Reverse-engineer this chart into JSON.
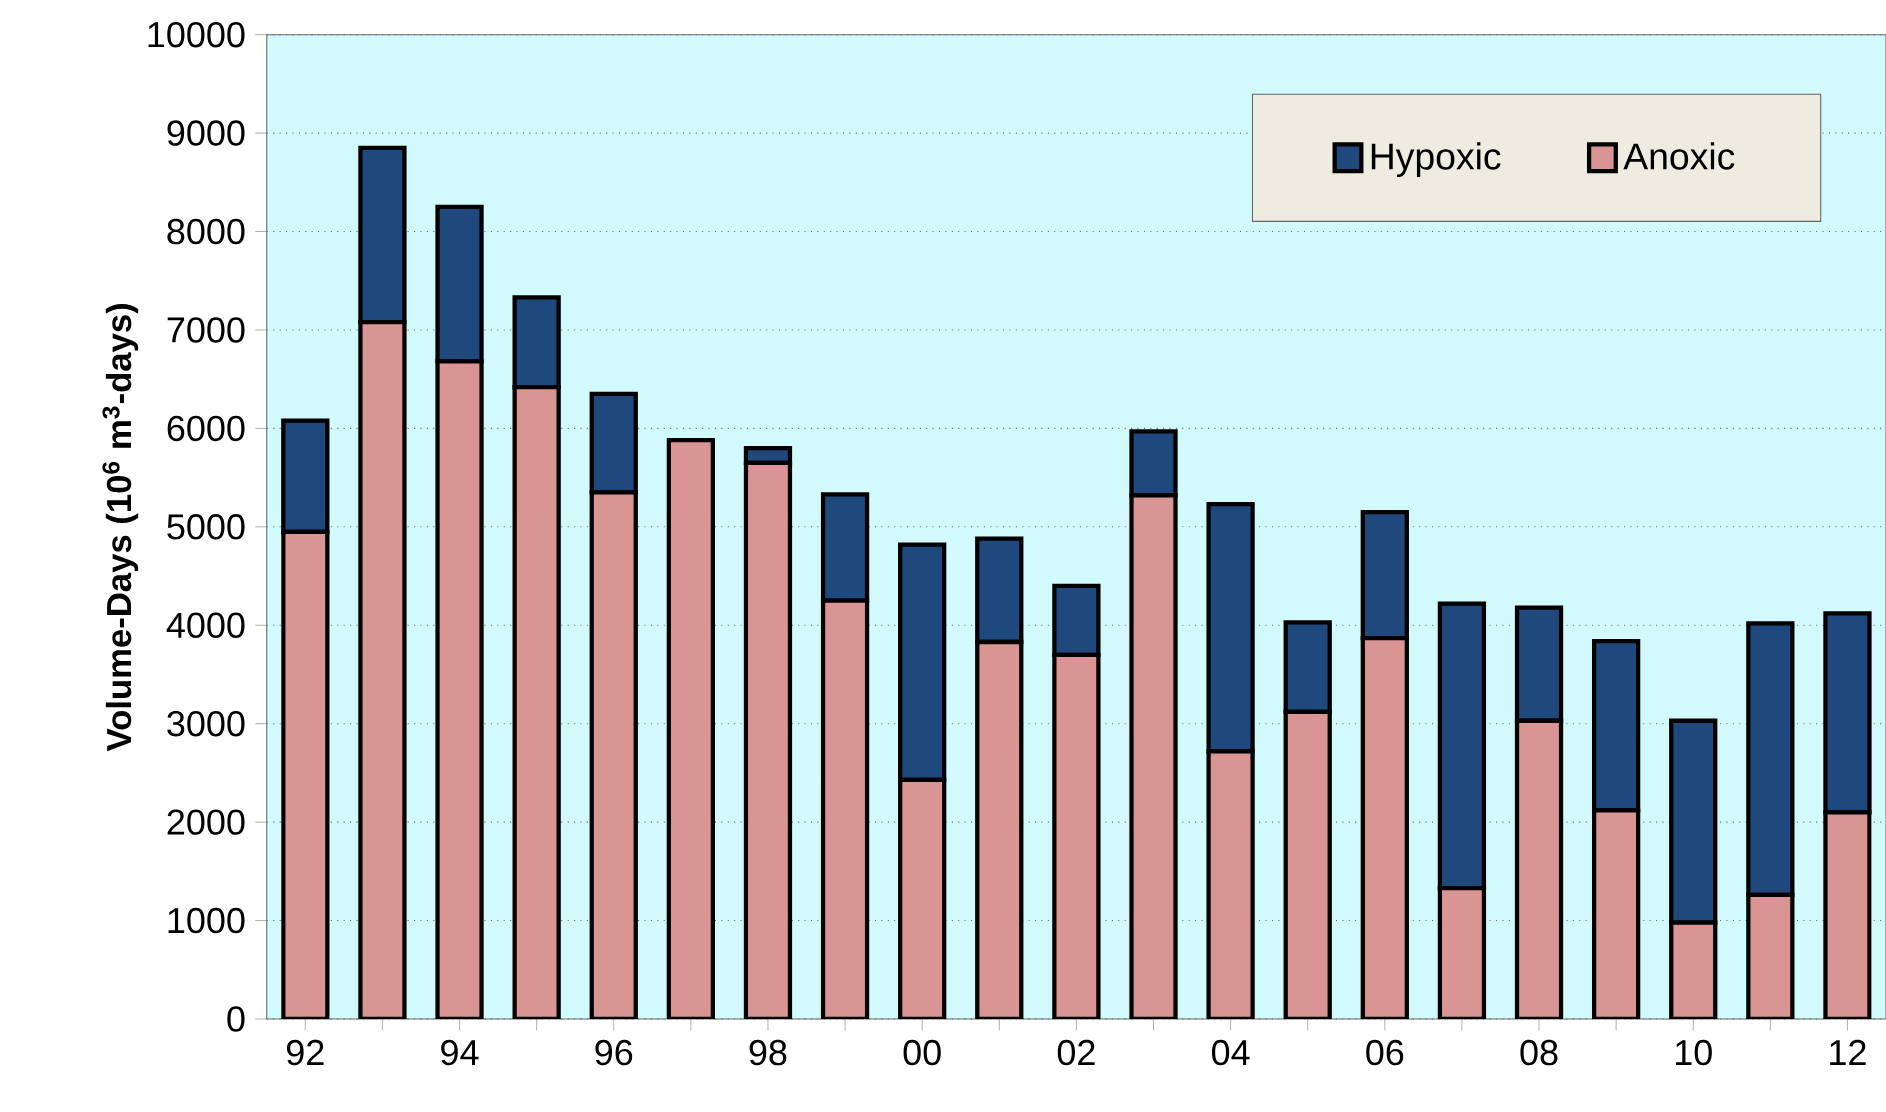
{
  "chart_data": {
    "type": "bar",
    "stacked": true,
    "ylabel": "Volume-Days (10$^{6}$ m$^{3}$-days)",
    "categories": [
      "92",
      null,
      "94",
      null,
      "96",
      null,
      "98",
      null,
      "00",
      null,
      "02",
      null,
      "04",
      null,
      "06",
      null,
      "08",
      null,
      "10",
      null,
      "12"
    ],
    "series": [
      {
        "name": "Anoxic",
        "color": "#d99594",
        "values": [
          4950,
          7080,
          6680,
          6420,
          5350,
          5880,
          5650,
          4250,
          2430,
          3830,
          3700,
          5320,
          2720,
          3120,
          3870,
          1330,
          3030,
          2120,
          980,
          1260,
          2100
        ]
      },
      {
        "name": "Hypoxic",
        "color": "#1f497d",
        "values": [
          1130,
          1770,
          1570,
          910,
          1000,
          0,
          150,
          1080,
          2390,
          1050,
          700,
          650,
          2510,
          910,
          1280,
          2890,
          1150,
          1720,
          2050,
          2760,
          2020
        ]
      }
    ],
    "ylim": [
      0,
      10000
    ],
    "yticks": [
      0,
      1000,
      2000,
      3000,
      4000,
      5000,
      6000,
      7000,
      8000,
      9000,
      10000
    ],
    "grid": "y",
    "legend": "top right"
  }
}
